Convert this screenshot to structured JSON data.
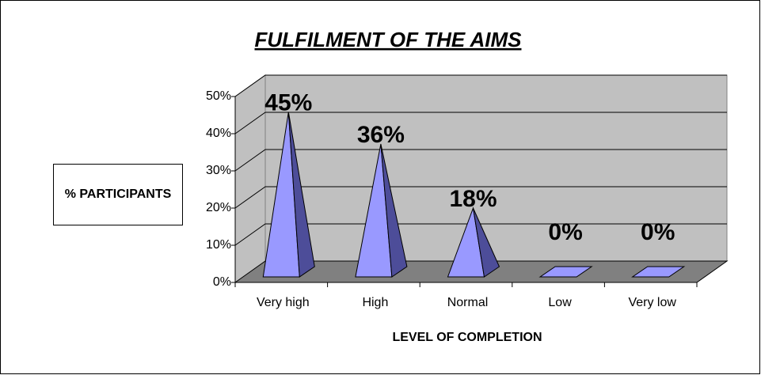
{
  "chart_data": {
    "type": "pyramid3d",
    "title": "FULFILMENT OF THE AIMS",
    "ylabel": "% PARTICIPANTS",
    "xlabel": "LEVEL OF COMPLETION",
    "categories": [
      "Very high",
      "High",
      "Normal",
      "Low",
      "Very low"
    ],
    "values": [
      45,
      36,
      18,
      0,
      0
    ],
    "value_labels": [
      "45%",
      "36%",
      "18%",
      "0%",
      "0%"
    ],
    "color": "#9999ff",
    "ylim": [
      0,
      50
    ],
    "yticks": [
      {
        "value": 0,
        "label": "0%"
      },
      {
        "value": 10,
        "label": "10%"
      },
      {
        "value": 20,
        "label": "20%"
      },
      {
        "value": 30,
        "label": "30%"
      },
      {
        "value": 40,
        "label": "40%"
      },
      {
        "value": 50,
        "label": "50%"
      }
    ],
    "grid": true
  }
}
